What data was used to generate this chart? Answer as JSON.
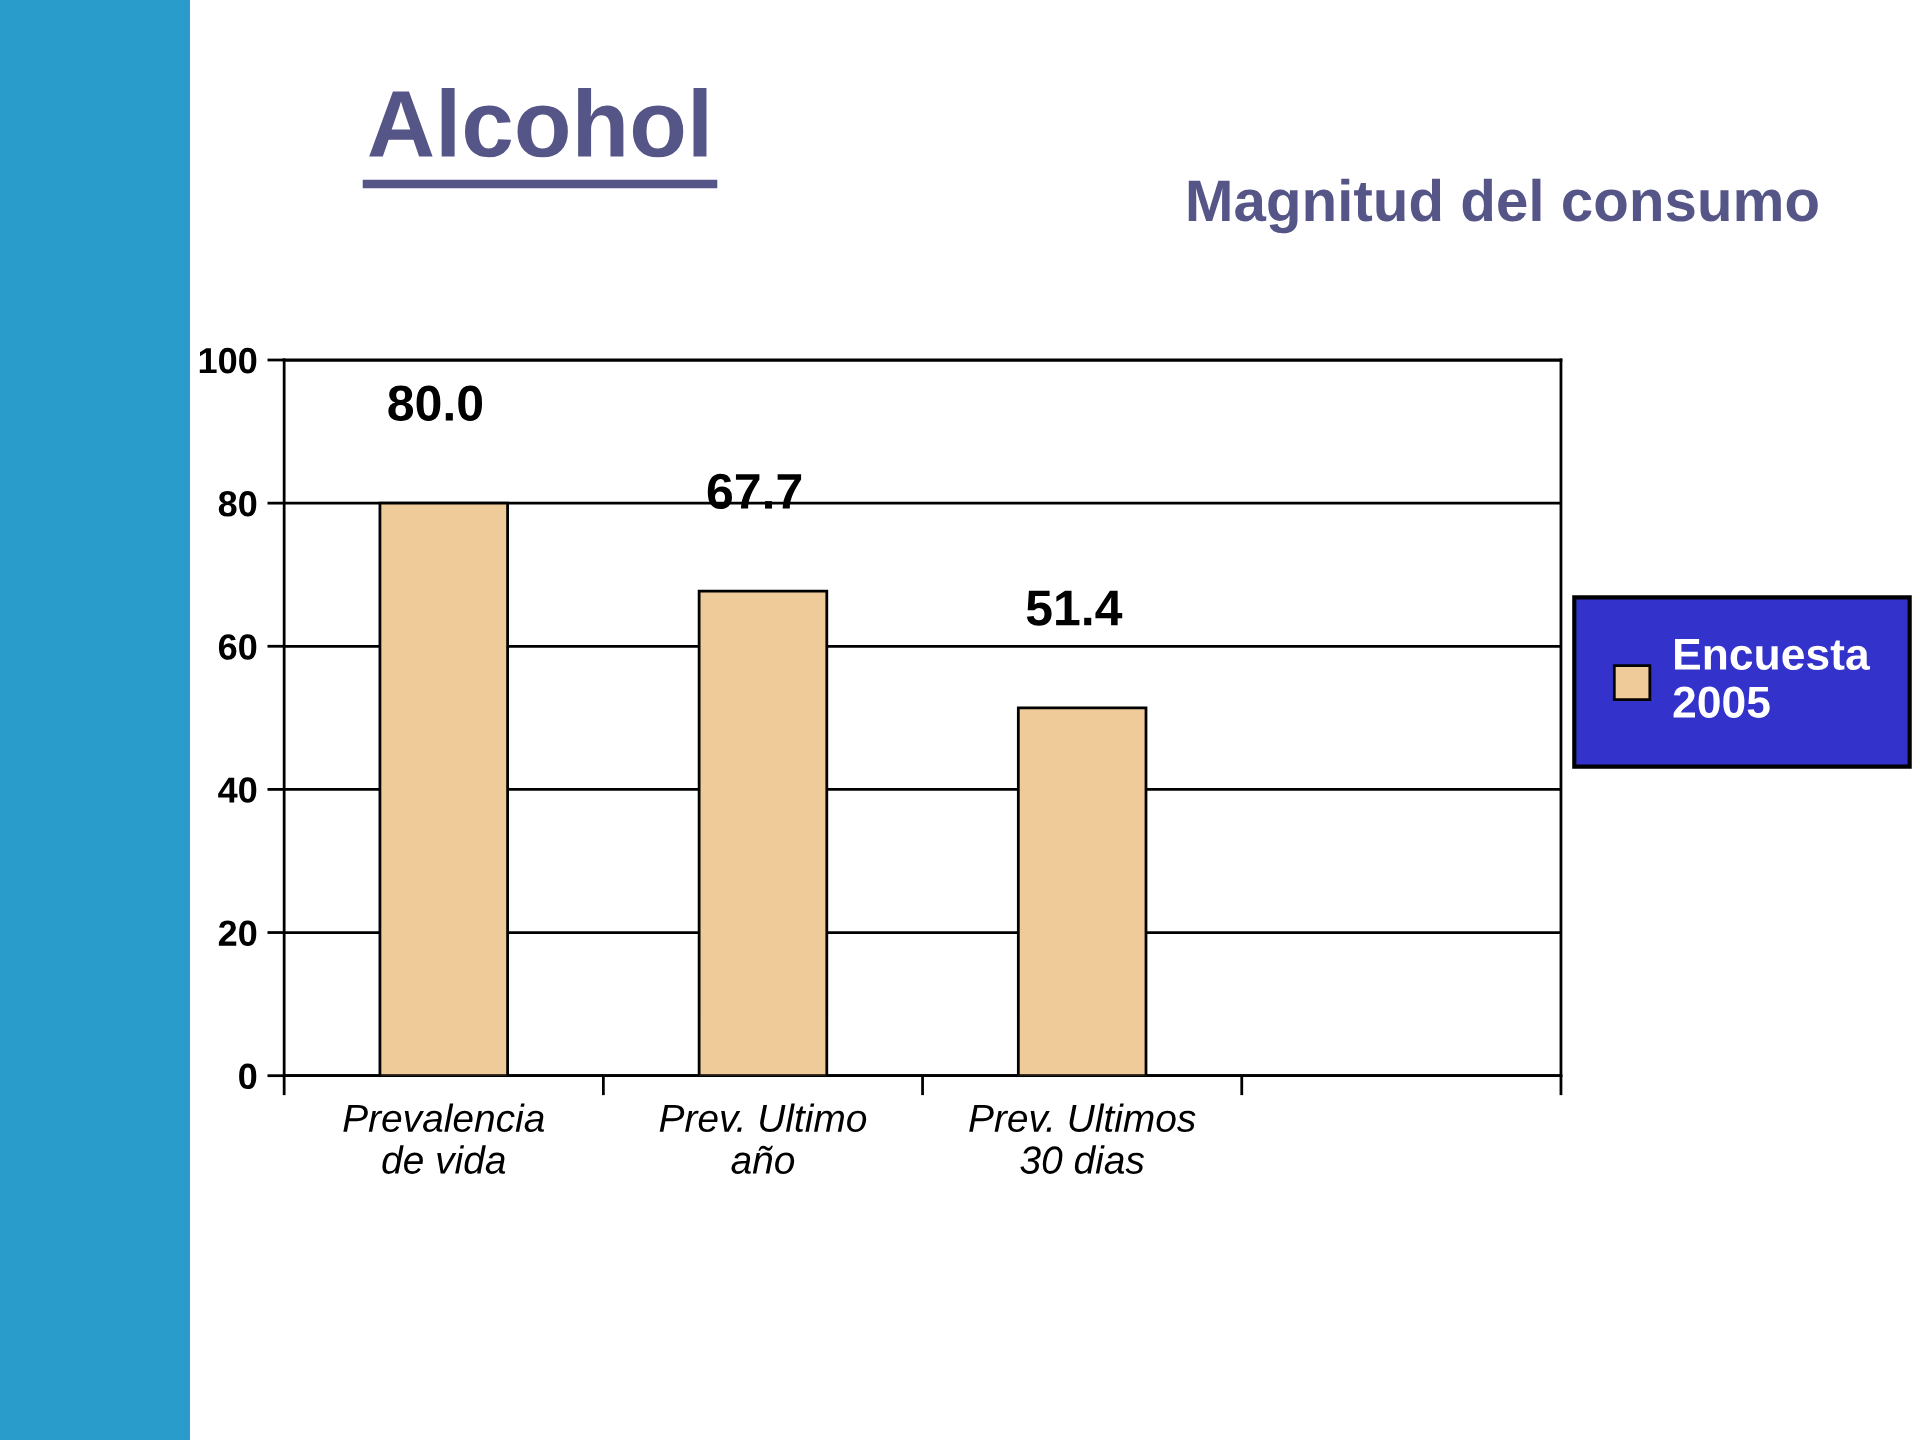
{
  "chart_data": {
    "type": "bar",
    "title": "Alcohol",
    "subtitle": "Magnitud del consumo",
    "categories": [
      "Prevalencia\nde vida",
      "Prev. Ultimo\naño",
      "Prev. Ultimos\n30 dias",
      null
    ],
    "series": [
      {
        "name": "Encuesta 2005",
        "color": "#eecb98",
        "values": [
          80.0,
          67.7,
          51.4,
          null
        ],
        "value_labels": [
          "80.0",
          "67.7",
          "51.4",
          null
        ]
      }
    ],
    "ylim": [
      0,
      100
    ],
    "yticks": [
      0,
      20,
      40,
      60,
      80,
      100
    ],
    "grid": "y",
    "legend": "right"
  }
}
